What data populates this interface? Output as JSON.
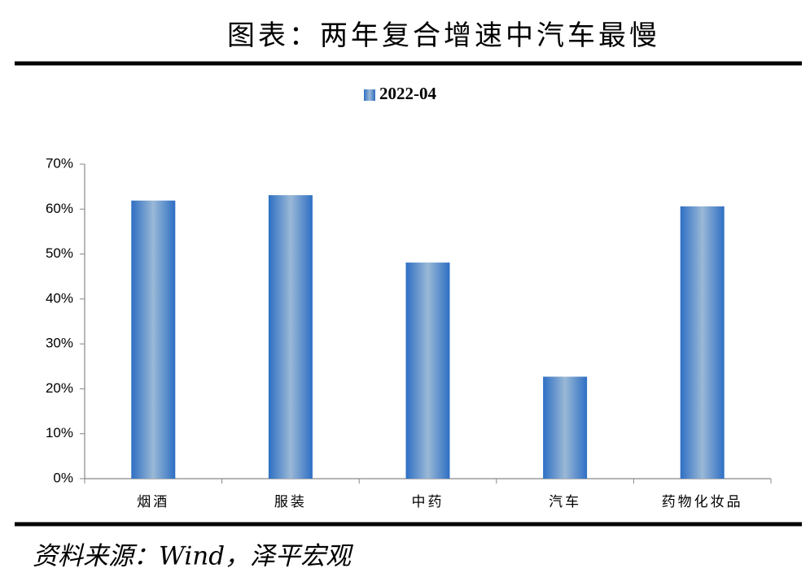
{
  "chart_data": {
    "type": "bar",
    "title": "图表：两年复合增速中汽车最慢",
    "categories": [
      "烟酒",
      "服装",
      "中药",
      "汽车",
      "药物化妆品"
    ],
    "series": [
      {
        "name": "2022-04",
        "color": "#2e6fc4",
        "values": [
          61.9,
          63.1,
          48.1,
          22.7,
          60.6
        ]
      }
    ],
    "ylim": [
      0,
      70
    ],
    "yticks": [
      {
        "value": 0,
        "label": "0%"
      },
      {
        "value": 10,
        "label": "10%"
      },
      {
        "value": 20,
        "label": "20%"
      },
      {
        "value": 30,
        "label": "30%"
      },
      {
        "value": 40,
        "label": "40%"
      },
      {
        "value": 50,
        "label": "50%"
      },
      {
        "value": 60,
        "label": "60%"
      },
      {
        "value": 70,
        "label": "70%"
      }
    ],
    "grid": false,
    "legend": "top",
    "source": "资料来源：Wind，泽平宏观"
  }
}
